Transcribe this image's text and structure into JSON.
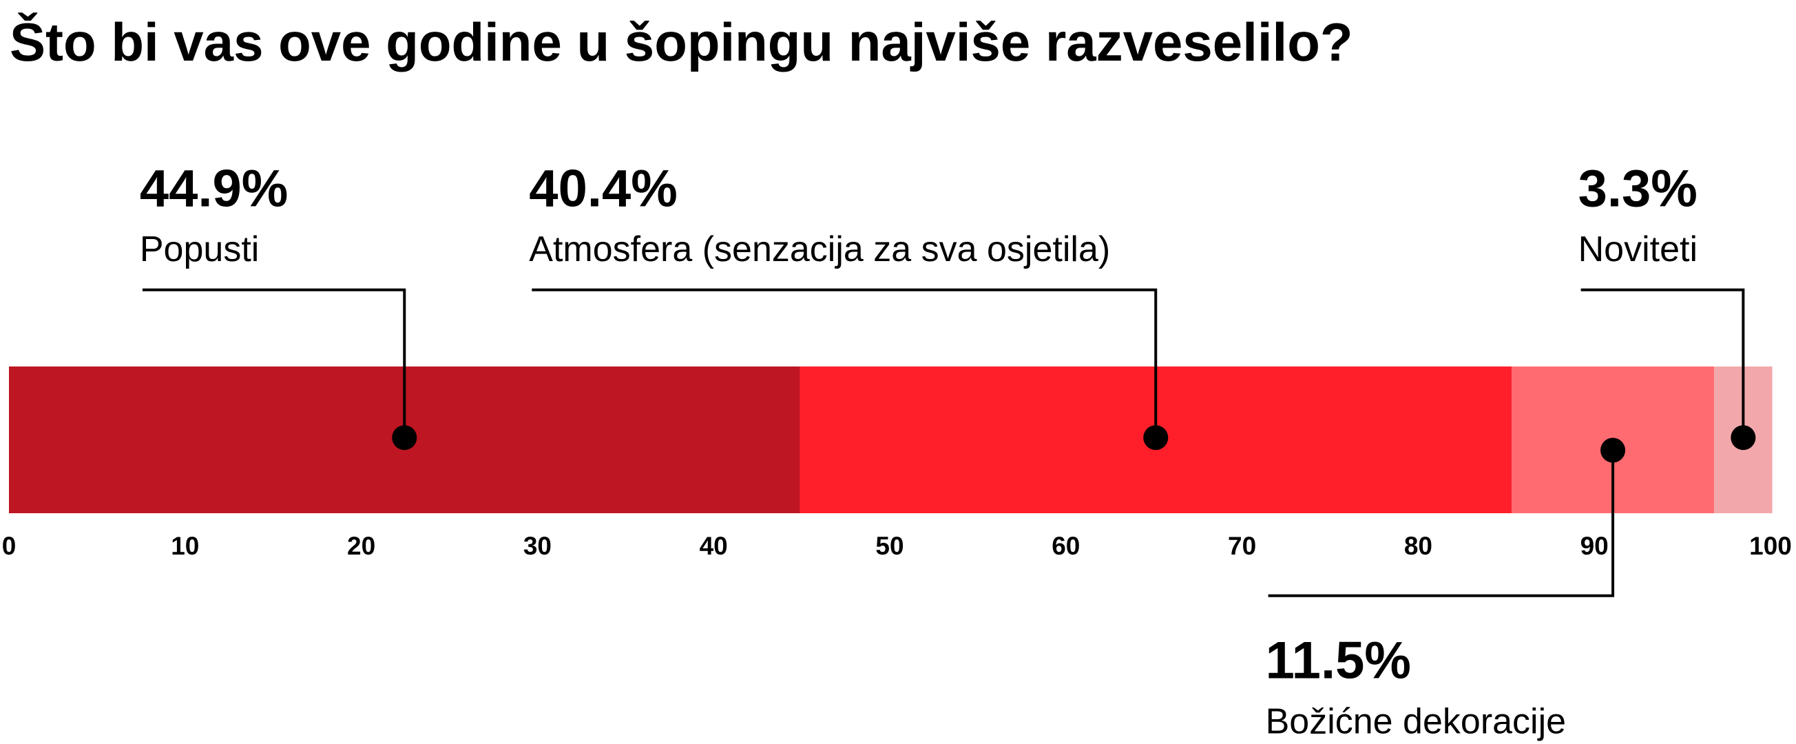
{
  "chart_data": {
    "type": "stacked_bar",
    "orientation": "horizontal",
    "title": "Što bi vas ove godine u šopingu najviše razveselilo?",
    "categories": [
      "Popusti",
      "Atmosfera (senzacija za sva osjetila)",
      "Božićne dekoracije",
      "Noviteti"
    ],
    "values": [
      44.9,
      40.4,
      11.5,
      3.3
    ],
    "value_labels": [
      "44.9%",
      "40.4%",
      "11.5%",
      "3.3%"
    ],
    "colors": [
      "#be1622",
      "#fe1f2b",
      "#ff6b70",
      "#f2a8aa"
    ],
    "xlim": [
      0,
      100
    ],
    "xticks": [
      0,
      10,
      20,
      30,
      40,
      50,
      60,
      70,
      80,
      90,
      100
    ]
  }
}
